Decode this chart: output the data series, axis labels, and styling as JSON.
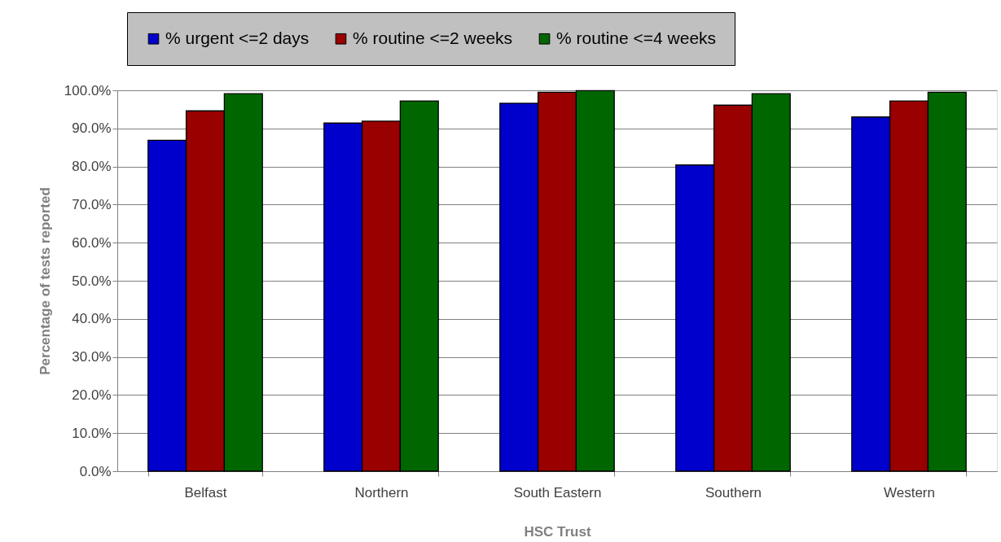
{
  "chart_data": {
    "type": "bar",
    "xlabel": "HSC Trust",
    "ylabel": "Percentage of tests reported",
    "categories": [
      "Belfast",
      "Northern",
      "South Eastern",
      "Southern",
      "Western"
    ],
    "series": [
      {
        "name": "% urgent <=2 days",
        "color": "#0000cc",
        "values": [
          86.9,
          91.4,
          96.6,
          80.4,
          93.0
        ]
      },
      {
        "name": "% routine <=2 weeks",
        "color": "#990000",
        "values": [
          94.6,
          91.9,
          99.5,
          96.1,
          97.2
        ]
      },
      {
        "name": "% routine <=4 weeks",
        "color": "#006600",
        "values": [
          99.1,
          97.2,
          99.9,
          99.1,
          99.5
        ]
      }
    ],
    "ylim": [
      0,
      100
    ],
    "yticks": [
      {
        "value": 0,
        "label": "0.0%"
      },
      {
        "value": 10,
        "label": "10.0%"
      },
      {
        "value": 20,
        "label": "20.0%"
      },
      {
        "value": 30,
        "label": "30.0%"
      },
      {
        "value": 40,
        "label": "40.0%"
      },
      {
        "value": 50,
        "label": "50.0%"
      },
      {
        "value": 60,
        "label": "60.0%"
      },
      {
        "value": 70,
        "label": "70.0%"
      },
      {
        "value": 80,
        "label": "80.0%"
      },
      {
        "value": 90,
        "label": "90.0%"
      },
      {
        "value": 100,
        "label": "100.0%"
      }
    ],
    "grid": "y",
    "legend": "top"
  }
}
